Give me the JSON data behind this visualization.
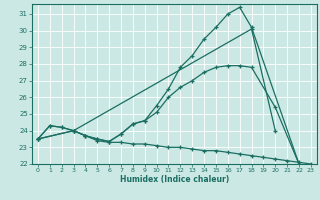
{
  "xlabel": "Humidex (Indice chaleur)",
  "bg_color": "#cce8e4",
  "grid_color": "#ffffff",
  "line_color": "#1a6e62",
  "xlim": [
    -0.5,
    23.5
  ],
  "ylim": [
    22,
    31.6
  ],
  "xticks": [
    0,
    1,
    2,
    3,
    4,
    5,
    6,
    7,
    8,
    9,
    10,
    11,
    12,
    13,
    14,
    15,
    16,
    17,
    18,
    19,
    20,
    21,
    22,
    23
  ],
  "yticks": [
    22,
    23,
    24,
    25,
    26,
    27,
    28,
    29,
    30,
    31
  ],
  "line1_x": [
    0,
    1,
    2,
    3,
    4,
    5,
    6,
    7,
    8,
    9,
    10,
    11,
    12,
    13,
    14,
    15,
    16,
    17,
    18,
    22
  ],
  "line1_y": [
    23.5,
    24.3,
    24.2,
    24.0,
    23.7,
    23.5,
    23.35,
    23.8,
    24.4,
    24.6,
    25.5,
    26.5,
    27.8,
    28.5,
    29.5,
    30.2,
    31.0,
    31.4,
    30.2,
    22.0
  ],
  "line2_x": [
    0,
    1,
    2,
    3,
    4,
    5,
    6,
    7,
    8,
    9,
    10,
    11,
    12,
    13,
    14,
    15,
    16,
    17,
    18,
    20,
    22
  ],
  "line2_y": [
    23.5,
    24.3,
    24.2,
    24.0,
    23.7,
    23.5,
    23.35,
    23.8,
    24.4,
    24.6,
    25.1,
    26.0,
    26.6,
    27.0,
    27.5,
    27.8,
    27.9,
    27.9,
    27.8,
    25.4,
    22.0
  ],
  "line3_x": [
    0,
    3,
    18,
    20
  ],
  "line3_y": [
    23.5,
    24.0,
    30.1,
    24.0
  ],
  "line4_x": [
    0,
    3,
    4,
    5,
    6,
    7,
    8,
    9,
    10,
    11,
    12,
    13,
    14,
    15,
    16,
    17,
    18,
    19,
    20,
    21,
    22,
    23
  ],
  "line4_y": [
    23.5,
    24.0,
    23.7,
    23.4,
    23.3,
    23.3,
    23.2,
    23.2,
    23.1,
    23.0,
    23.0,
    22.9,
    22.8,
    22.8,
    22.7,
    22.6,
    22.5,
    22.4,
    22.3,
    22.2,
    22.1,
    22.0
  ]
}
